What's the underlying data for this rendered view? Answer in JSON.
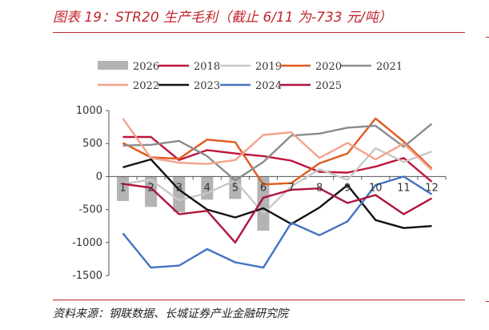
{
  "figure": {
    "title": "图表 19：STR20 生产毛利（截止 6/11 为-733 元/吨）",
    "source": "资料来源：钢联数据、长城证券产业金融研究院"
  },
  "chart_data": {
    "type": "line",
    "categories": [
      "1",
      "2",
      "3",
      "4",
      "5",
      "6",
      "7",
      "8",
      "9",
      "10",
      "11",
      "12"
    ],
    "ylim": [
      -1500,
      1000
    ],
    "yticks": [
      1000,
      500,
      0,
      -500,
      -1000,
      -1500
    ],
    "grid": false,
    "legend_position": "top",
    "series": [
      {
        "name": "2026",
        "kind": "bar",
        "color": "#b3b3b3",
        "values": [
          -370,
          -460,
          -540,
          -350,
          -340,
          -820,
          null,
          null,
          null,
          null,
          null,
          null
        ]
      },
      {
        "name": "2018",
        "kind": "line",
        "color": "#c0143c",
        "values": [
          600,
          600,
          250,
          400,
          350,
          310,
          240,
          70,
          60,
          150,
          280,
          -80
        ]
      },
      {
        "name": "2019",
        "kind": "line",
        "color": "#c8c8c8",
        "values": [
          -110,
          -50,
          -360,
          -250,
          -60,
          -560,
          -150,
          110,
          -50,
          430,
          220,
          380
        ]
      },
      {
        "name": "2020",
        "kind": "line",
        "color": "#e05a1e",
        "values": [
          510,
          290,
          270,
          560,
          520,
          -120,
          -100,
          200,
          350,
          880,
          530,
          120
        ]
      },
      {
        "name": "2021",
        "kind": "line",
        "color": "#8c8c8c",
        "values": [
          470,
          480,
          540,
          310,
          -60,
          220,
          620,
          650,
          740,
          770,
          450,
          800
        ]
      },
      {
        "name": "2022",
        "kind": "line",
        "color": "#f4a28c",
        "values": [
          880,
          280,
          210,
          190,
          250,
          630,
          670,
          280,
          510,
          260,
          500,
          100
        ]
      },
      {
        "name": "2023",
        "kind": "line",
        "color": "#111111",
        "values": [
          140,
          260,
          -200,
          -500,
          -620,
          -480,
          -720,
          -470,
          -130,
          -660,
          -780,
          -750
        ]
      },
      {
        "name": "2024",
        "kind": "line",
        "color": "#4472c4",
        "values": [
          -860,
          -1380,
          -1350,
          -1100,
          -1300,
          -1380,
          -700,
          -890,
          -680,
          -130,
          0,
          -270
        ]
      },
      {
        "name": "2025",
        "kind": "line",
        "color": "#b0143c",
        "values": [
          -110,
          -170,
          -570,
          -520,
          -1000,
          -320,
          -200,
          -180,
          -400,
          -280,
          -570,
          -330
        ]
      }
    ]
  }
}
